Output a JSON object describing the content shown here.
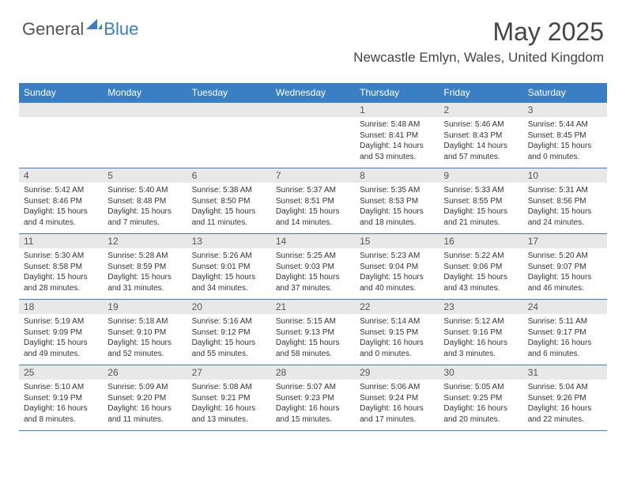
{
  "brand": {
    "part1": "General",
    "part2": "Blue"
  },
  "title": {
    "month": "May 2025",
    "location": "Newcastle Emlyn, Wales, United Kingdom"
  },
  "colors": {
    "accent": "#3a7fc4",
    "header_bg": "#3a7fc4",
    "daynum_bg": "#e8e8e8"
  },
  "daynames": [
    "Sunday",
    "Monday",
    "Tuesday",
    "Wednesday",
    "Thursday",
    "Friday",
    "Saturday"
  ],
  "weeks": [
    [
      null,
      null,
      null,
      null,
      {
        "n": "1",
        "sr": "5:48 AM",
        "ss": "8:41 PM",
        "dl": "14 hours and 53 minutes."
      },
      {
        "n": "2",
        "sr": "5:46 AM",
        "ss": "8:43 PM",
        "dl": "14 hours and 57 minutes."
      },
      {
        "n": "3",
        "sr": "5:44 AM",
        "ss": "8:45 PM",
        "dl": "15 hours and 0 minutes."
      }
    ],
    [
      {
        "n": "4",
        "sr": "5:42 AM",
        "ss": "8:46 PM",
        "dl": "15 hours and 4 minutes."
      },
      {
        "n": "5",
        "sr": "5:40 AM",
        "ss": "8:48 PM",
        "dl": "15 hours and 7 minutes."
      },
      {
        "n": "6",
        "sr": "5:38 AM",
        "ss": "8:50 PM",
        "dl": "15 hours and 11 minutes."
      },
      {
        "n": "7",
        "sr": "5:37 AM",
        "ss": "8:51 PM",
        "dl": "15 hours and 14 minutes."
      },
      {
        "n": "8",
        "sr": "5:35 AM",
        "ss": "8:53 PM",
        "dl": "15 hours and 18 minutes."
      },
      {
        "n": "9",
        "sr": "5:33 AM",
        "ss": "8:55 PM",
        "dl": "15 hours and 21 minutes."
      },
      {
        "n": "10",
        "sr": "5:31 AM",
        "ss": "8:56 PM",
        "dl": "15 hours and 24 minutes."
      }
    ],
    [
      {
        "n": "11",
        "sr": "5:30 AM",
        "ss": "8:58 PM",
        "dl": "15 hours and 28 minutes."
      },
      {
        "n": "12",
        "sr": "5:28 AM",
        "ss": "8:59 PM",
        "dl": "15 hours and 31 minutes."
      },
      {
        "n": "13",
        "sr": "5:26 AM",
        "ss": "9:01 PM",
        "dl": "15 hours and 34 minutes."
      },
      {
        "n": "14",
        "sr": "5:25 AM",
        "ss": "9:03 PM",
        "dl": "15 hours and 37 minutes."
      },
      {
        "n": "15",
        "sr": "5:23 AM",
        "ss": "9:04 PM",
        "dl": "15 hours and 40 minutes."
      },
      {
        "n": "16",
        "sr": "5:22 AM",
        "ss": "9:06 PM",
        "dl": "15 hours and 43 minutes."
      },
      {
        "n": "17",
        "sr": "5:20 AM",
        "ss": "9:07 PM",
        "dl": "15 hours and 46 minutes."
      }
    ],
    [
      {
        "n": "18",
        "sr": "5:19 AM",
        "ss": "9:09 PM",
        "dl": "15 hours and 49 minutes."
      },
      {
        "n": "19",
        "sr": "5:18 AM",
        "ss": "9:10 PM",
        "dl": "15 hours and 52 minutes."
      },
      {
        "n": "20",
        "sr": "5:16 AM",
        "ss": "9:12 PM",
        "dl": "15 hours and 55 minutes."
      },
      {
        "n": "21",
        "sr": "5:15 AM",
        "ss": "9:13 PM",
        "dl": "15 hours and 58 minutes."
      },
      {
        "n": "22",
        "sr": "5:14 AM",
        "ss": "9:15 PM",
        "dl": "16 hours and 0 minutes."
      },
      {
        "n": "23",
        "sr": "5:12 AM",
        "ss": "9:16 PM",
        "dl": "16 hours and 3 minutes."
      },
      {
        "n": "24",
        "sr": "5:11 AM",
        "ss": "9:17 PM",
        "dl": "16 hours and 6 minutes."
      }
    ],
    [
      {
        "n": "25",
        "sr": "5:10 AM",
        "ss": "9:19 PM",
        "dl": "16 hours and 8 minutes."
      },
      {
        "n": "26",
        "sr": "5:09 AM",
        "ss": "9:20 PM",
        "dl": "16 hours and 11 minutes."
      },
      {
        "n": "27",
        "sr": "5:08 AM",
        "ss": "9:21 PM",
        "dl": "16 hours and 13 minutes."
      },
      {
        "n": "28",
        "sr": "5:07 AM",
        "ss": "9:23 PM",
        "dl": "16 hours and 15 minutes."
      },
      {
        "n": "29",
        "sr": "5:06 AM",
        "ss": "9:24 PM",
        "dl": "16 hours and 17 minutes."
      },
      {
        "n": "30",
        "sr": "5:05 AM",
        "ss": "9:25 PM",
        "dl": "16 hours and 20 minutes."
      },
      {
        "n": "31",
        "sr": "5:04 AM",
        "ss": "9:26 PM",
        "dl": "16 hours and 22 minutes."
      }
    ]
  ],
  "labels": {
    "sunrise": "Sunrise:",
    "sunset": "Sunset:",
    "daylight": "Daylight:"
  }
}
